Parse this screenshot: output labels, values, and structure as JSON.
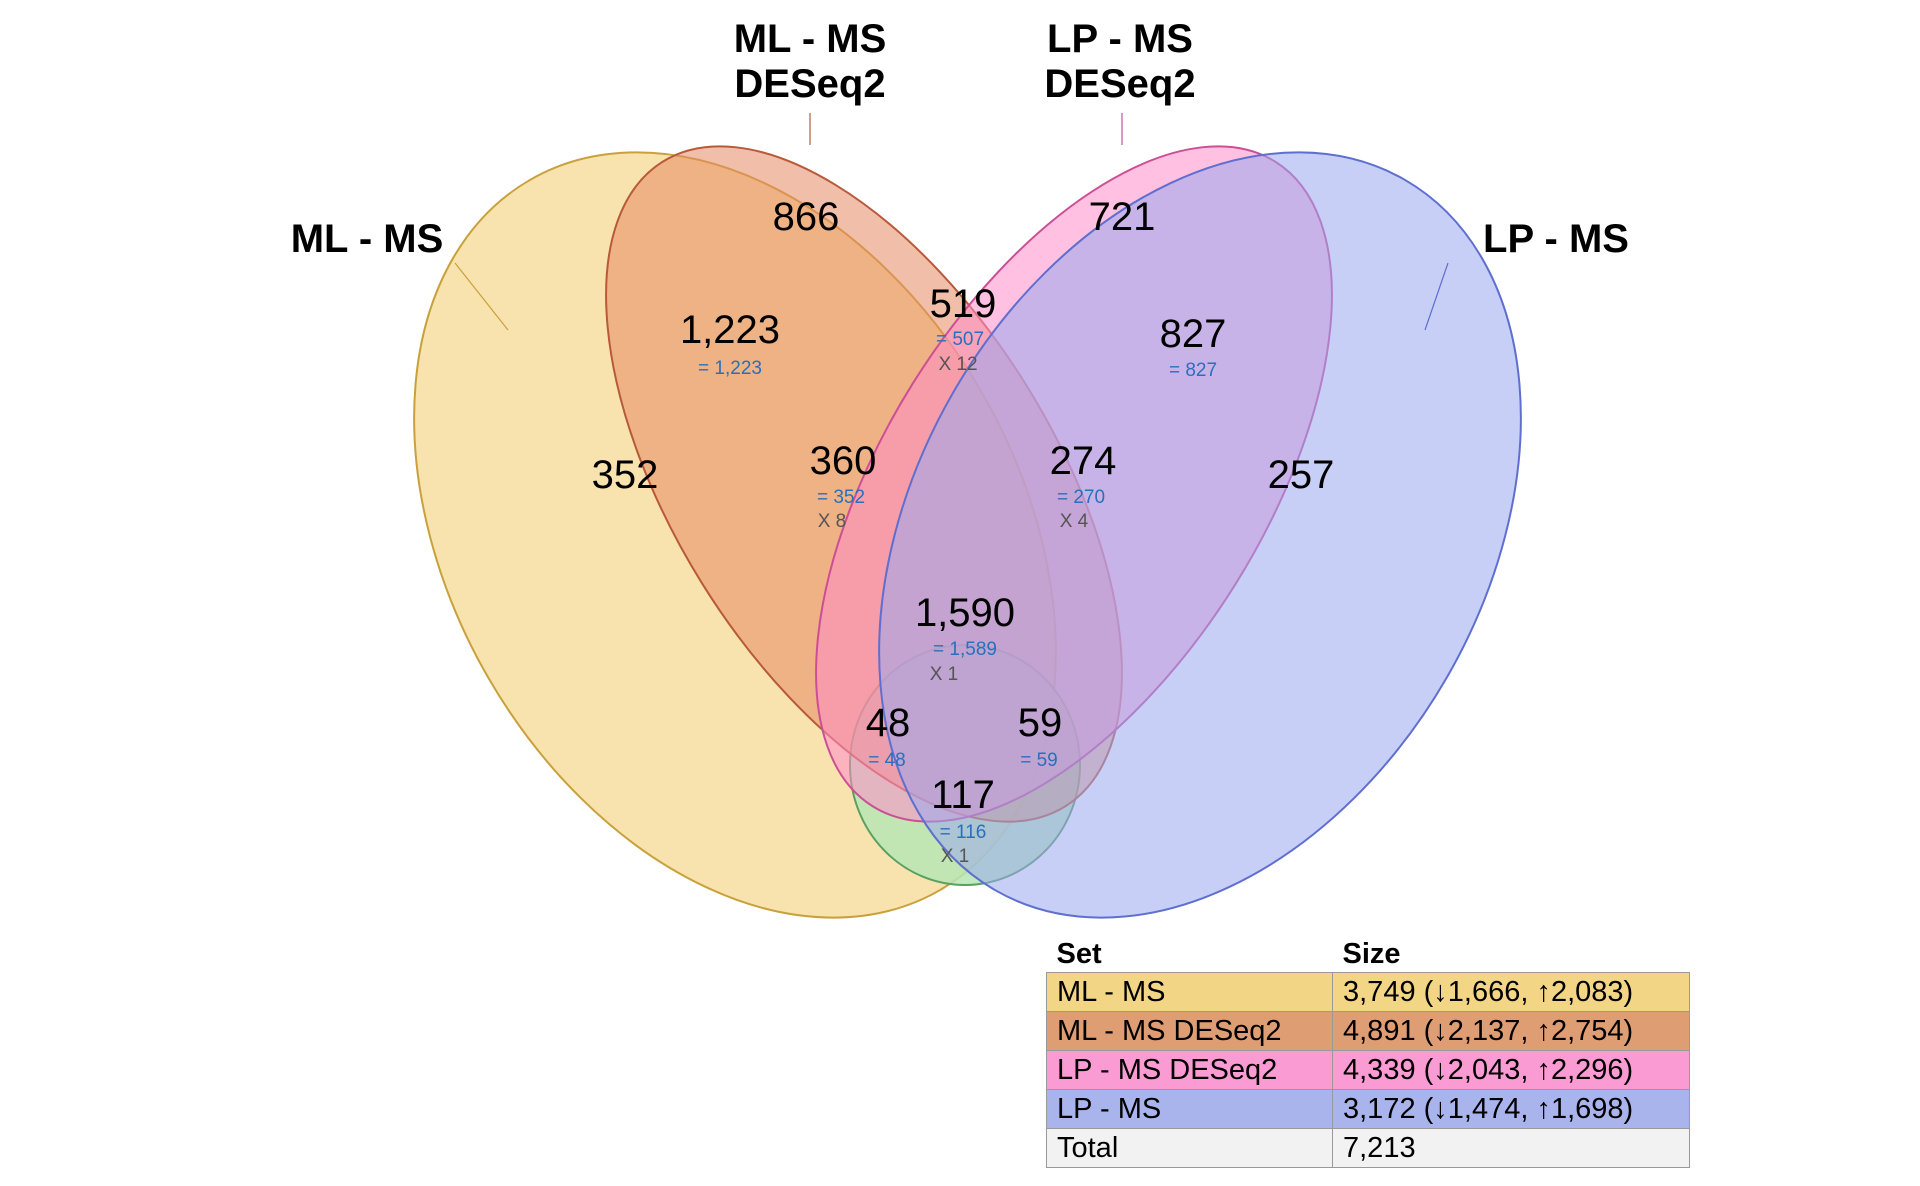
{
  "sets": [
    {
      "id": "A",
      "title_lines": [
        "ML - MS"
      ],
      "color": "#f3d078",
      "stroke": "#c9a13c"
    },
    {
      "id": "B",
      "title_lines": [
        "ML - MS",
        "DESeq2"
      ],
      "color": "#e58a63",
      "stroke": "#b85a3a"
    },
    {
      "id": "C",
      "title_lines": [
        "LP - MS",
        "DESeq2"
      ],
      "color": "#ff8ccb",
      "stroke": "#cc4f96"
    },
    {
      "id": "D",
      "title_lines": [
        "LP - MS"
      ],
      "color": "#9aa8ee",
      "stroke": "#5f6fcf"
    },
    {
      "id": "E",
      "title_lines": [],
      "color": "#b7e6b4",
      "stroke": "#5aa060"
    }
  ],
  "regions": [
    {
      "key": "A",
      "count": "352"
    },
    {
      "key": "B",
      "count": "866"
    },
    {
      "key": "C",
      "count": "721"
    },
    {
      "key": "D",
      "count": "257"
    },
    {
      "key": "AB",
      "count": "1,223",
      "eq": "= 1,223"
    },
    {
      "key": "BC",
      "count": "519",
      "eq": "= 507",
      "mult": "X 12"
    },
    {
      "key": "CD",
      "count": "827",
      "eq": "= 827"
    },
    {
      "key": "ABC",
      "count": "360",
      "eq": "= 352",
      "mult": "X 8"
    },
    {
      "key": "BCD",
      "count": "274",
      "eq": "= 270",
      "mult": "X 4"
    },
    {
      "key": "ABCD",
      "count": "1,590",
      "eq": "= 1,589",
      "mult": "X 1"
    },
    {
      "key": "ACD_left",
      "count": "48",
      "eq": "= 48"
    },
    {
      "key": "ACD_right",
      "count": "59",
      "eq": "= 59"
    },
    {
      "key": "AD",
      "count": "117",
      "eq": "= 116",
      "mult": "X 1"
    }
  ],
  "table": {
    "headers": [
      "Set",
      "Size"
    ],
    "rows": [
      {
        "set": "ML - MS",
        "size": "3,749 (↓1,666, ↑2,083)",
        "color": "#f3d685"
      },
      {
        "set": "ML - MS DESeq2",
        "size": "4,891 (↓2,137, ↑2,754)",
        "color": "#df9d73"
      },
      {
        "set": "LP - MS DESeq2",
        "size": "4,339 (↓2,043, ↑2,296)",
        "color": "#fb9bd3"
      },
      {
        "set": "LP - MS",
        "size": "3,172 (↓1,474, ↑1,698)",
        "color": "#a9b4ed"
      },
      {
        "set": "Total",
        "size": "7,213",
        "color": "#f2f2f2"
      }
    ]
  }
}
